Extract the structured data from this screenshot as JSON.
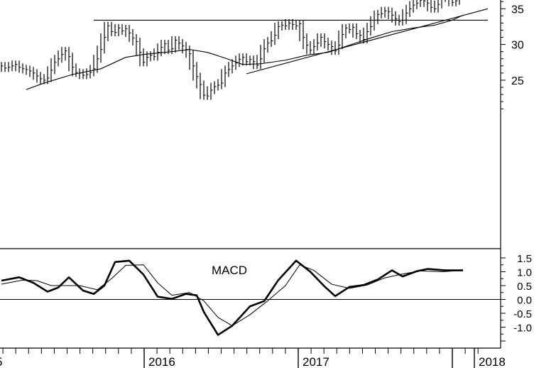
{
  "chart_data": [
    {
      "type": "ohlc",
      "title": "",
      "xlabel": "",
      "ylabel": "",
      "x_ticks": [
        "5",
        "2016",
        "2017",
        "2018"
      ],
      "y_ticks": [
        25,
        30,
        35
      ],
      "ylim": [
        20.5,
        39.5
      ],
      "grid": false,
      "series": [
        {
          "kind": "price_bars",
          "points": [
            [
              0,
              27
            ],
            [
              1,
              26.7
            ],
            [
              2,
              26.8
            ],
            [
              3,
              27
            ],
            [
              4,
              27.2
            ],
            [
              5,
              26.8
            ],
            [
              6,
              26.6
            ],
            [
              7,
              26.5
            ],
            [
              8,
              26.3
            ],
            [
              9,
              26
            ],
            [
              10,
              25.6
            ],
            [
              11,
              25.2
            ],
            [
              12,
              25
            ],
            [
              13,
              25.3
            ],
            [
              14,
              26.4
            ],
            [
              15,
              27.5
            ],
            [
              16,
              28
            ],
            [
              17,
              28.6
            ],
            [
              18,
              29.1
            ],
            [
              19,
              28.3
            ],
            [
              20,
              26.8
            ],
            [
              21,
              26.1
            ],
            [
              22,
              26
            ],
            [
              23,
              25.7
            ],
            [
              24,
              25.8
            ],
            [
              25,
              26.1
            ],
            [
              26,
              26.6
            ],
            [
              27,
              28
            ],
            [
              28,
              29.3
            ],
            [
              29,
              31
            ],
            [
              30,
              32.6
            ],
            [
              31,
              31.8
            ],
            [
              32,
              31.7
            ],
            [
              33,
              32.3
            ],
            [
              34,
              31.9
            ],
            [
              35,
              32.2
            ],
            [
              36,
              31.6
            ],
            [
              37,
              30.9
            ],
            [
              38,
              30.4
            ],
            [
              39,
              28.9
            ],
            [
              40,
              27.5
            ],
            [
              41,
              28.2
            ],
            [
              42,
              28.5
            ],
            [
              43,
              28.3
            ],
            [
              44,
              28.9
            ],
            [
              45,
              29.6
            ],
            [
              46,
              30.1
            ],
            [
              47,
              29.2
            ],
            [
              48,
              29.4
            ],
            [
              49,
              30.6
            ],
            [
              50,
              30.2
            ],
            [
              51,
              29.8
            ],
            [
              52,
              29.3
            ],
            [
              53,
              28.7
            ],
            [
              54,
              27
            ],
            [
              55,
              25.5
            ],
            [
              56,
              24.4
            ],
            [
              57,
              22.9
            ],
            [
              58,
              22.8
            ],
            [
              59,
              23.6
            ],
            [
              60,
              24.1
            ],
            [
              61,
              24.3
            ],
            [
              62,
              24.6
            ],
            [
              63,
              26
            ],
            [
              64,
              26.5
            ],
            [
              65,
              27
            ],
            [
              66,
              27.4
            ],
            [
              67,
              27.9
            ],
            [
              68,
              28.2
            ],
            [
              69,
              27.6
            ],
            [
              70,
              27.9
            ],
            [
              71,
              27.6
            ],
            [
              72,
              27.1
            ],
            [
              73,
              28
            ],
            [
              74,
              29.4
            ],
            [
              75,
              30.2
            ],
            [
              76,
              30.5
            ],
            [
              77,
              31.3
            ],
            [
              78,
              32.5
            ],
            [
              79,
              32.7
            ],
            [
              80,
              32.6
            ],
            [
              81,
              33
            ],
            [
              82,
              32.8
            ],
            [
              83,
              32.6
            ],
            [
              84,
              32.9
            ],
            [
              85,
              31
            ],
            [
              86,
              29.9
            ],
            [
              87,
              29.2
            ],
            [
              88,
              29.7
            ],
            [
              89,
              30.2
            ],
            [
              90,
              31
            ],
            [
              91,
              30.4
            ],
            [
              92,
              30
            ],
            [
              93,
              29.7
            ],
            [
              94,
              29.1
            ],
            [
              95,
              29.9
            ],
            [
              96,
              31.4
            ],
            [
              97,
              32.3
            ],
            [
              98,
              32.1
            ],
            [
              99,
              32.4
            ],
            [
              100,
              31.5
            ],
            [
              101,
              31.3
            ],
            [
              102,
              30.7
            ],
            [
              103,
              31.8
            ],
            [
              104,
              32.5
            ],
            [
              105,
              33.4
            ],
            [
              106,
              34.2
            ],
            [
              107,
              34.3
            ],
            [
              108,
              34.7
            ],
            [
              109,
              34.6
            ],
            [
              110,
              34.1
            ],
            [
              111,
              33.6
            ],
            [
              112,
              33.2
            ],
            [
              113,
              33.4
            ],
            [
              114,
              34.4
            ],
            [
              115,
              35
            ],
            [
              116,
              35.5
            ],
            [
              117,
              35.8
            ],
            [
              118,
              36.2
            ],
            [
              119,
              36.1
            ],
            [
              120,
              35.8
            ],
            [
              121,
              35.2
            ],
            [
              122,
              35
            ],
            [
              123,
              35.6
            ],
            [
              124,
              36.6
            ],
            [
              125,
              36.9
            ],
            [
              126,
              36.5
            ],
            [
              127,
              35.9
            ],
            [
              128,
              36.1
            ],
            [
              129,
              37.3
            ]
          ]
        },
        {
          "kind": "moving_average",
          "points": [
            [
              7,
              23.7
            ],
            [
              12,
              24.6
            ],
            [
              20,
              25.8
            ],
            [
              28,
              26.6
            ],
            [
              35,
              28.2
            ],
            [
              40,
              28.6
            ],
            [
              48,
              29
            ],
            [
              53,
              29.3
            ],
            [
              58,
              28.9
            ],
            [
              63,
              28.1
            ],
            [
              68,
              27.2
            ],
            [
              73,
              27.3
            ],
            [
              80,
              27.8
            ],
            [
              86,
              28.5
            ],
            [
              92,
              28.9
            ],
            [
              98,
              29.9
            ],
            [
              104,
              30.9
            ],
            [
              110,
              31.8
            ],
            [
              116,
              32.3
            ],
            [
              122,
              32.7
            ],
            [
              127,
              33.4
            ],
            [
              130,
              34.1
            ]
          ]
        },
        {
          "kind": "trendline",
          "points": [
            [
              69,
              25.9
            ],
            [
              137,
              35
            ]
          ]
        },
        {
          "kind": "horizontal_line",
          "points": [
            [
              26,
              33.4
            ],
            [
              137,
              33.4
            ]
          ]
        }
      ]
    },
    {
      "type": "line",
      "title": "MACD",
      "xlabel": "",
      "ylabel": "",
      "y_ticks": [
        "1.5",
        "1.0",
        "0.5",
        "0.0",
        "-0.5",
        "-1.0"
      ],
      "y_tick_values": [
        1.5,
        1.0,
        0.5,
        0.0,
        -0.5,
        -1.0
      ],
      "ylim": [
        -1.55,
        1.75
      ],
      "zero_line": 0,
      "series": [
        {
          "kind": "macd",
          "points": [
            [
              0,
              0.68
            ],
            [
              5,
              0.8
            ],
            [
              9,
              0.6
            ],
            [
              13,
              0.28
            ],
            [
              16,
              0.43
            ],
            [
              19,
              0.8
            ],
            [
              23,
              0.32
            ],
            [
              26,
              0.2
            ],
            [
              29,
              0.5
            ],
            [
              32,
              1.35
            ],
            [
              36,
              1.4
            ],
            [
              40,
              0.9
            ],
            [
              44,
              0.1
            ],
            [
              48,
              0.02
            ],
            [
              52,
              0.2
            ],
            [
              55,
              0.15
            ],
            [
              57,
              -0.45
            ],
            [
              61,
              -1.28
            ],
            [
              65,
              -0.95
            ],
            [
              70,
              -0.25
            ],
            [
              74,
              -0.06
            ],
            [
              78,
              0.7
            ],
            [
              83,
              1.4
            ],
            [
              87,
              1.0
            ],
            [
              91,
              0.47
            ],
            [
              94,
              0.12
            ],
            [
              98,
              0.45
            ],
            [
              102,
              0.52
            ],
            [
              106,
              0.72
            ],
            [
              110,
              1.05
            ],
            [
              113,
              0.83
            ],
            [
              117,
              1.02
            ],
            [
              120,
              1.1
            ],
            [
              125,
              1.05
            ],
            [
              130,
              1.05
            ]
          ]
        },
        {
          "kind": "signal",
          "points": [
            [
              0,
              0.55
            ],
            [
              6,
              0.7
            ],
            [
              10,
              0.68
            ],
            [
              14,
              0.5
            ],
            [
              18,
              0.5
            ],
            [
              22,
              0.5
            ],
            [
              27,
              0.35
            ],
            [
              31,
              0.75
            ],
            [
              35,
              1.23
            ],
            [
              40,
              1.25
            ],
            [
              44,
              0.6
            ],
            [
              48,
              0.15
            ],
            [
              53,
              0.25
            ],
            [
              57,
              -0.05
            ],
            [
              61,
              -0.65
            ],
            [
              65,
              -0.95
            ],
            [
              70,
              -0.55
            ],
            [
              75,
              -0.05
            ],
            [
              80,
              0.5
            ],
            [
              84,
              1.25
            ],
            [
              88,
              1.05
            ],
            [
              93,
              0.55
            ],
            [
              98,
              0.4
            ],
            [
              103,
              0.52
            ],
            [
              108,
              0.78
            ],
            [
              113,
              0.92
            ],
            [
              118,
              1.03
            ],
            [
              124,
              1.0
            ],
            [
              130,
              1.05
            ]
          ]
        }
      ]
    }
  ]
}
